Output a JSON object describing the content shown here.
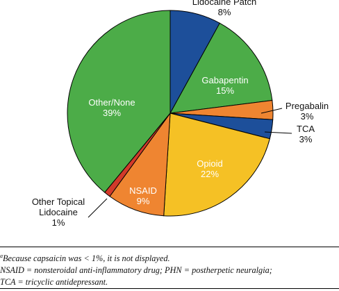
{
  "chart_data": {
    "type": "pie",
    "slices": [
      {
        "label": [
          "Lidocaine Patch"
        ],
        "value": 8,
        "pct": "8%",
        "color": "#1d4f9a"
      },
      {
        "label": [
          "Gabapentin"
        ],
        "value": 15,
        "pct": "15%",
        "color": "#4cac48"
      },
      {
        "label": [
          "Pregabalin"
        ],
        "value": 3,
        "pct": "3%",
        "color": "#ef8531"
      },
      {
        "label": [
          "TCA"
        ],
        "value": 3,
        "pct": "3%",
        "color": "#1d4f9a"
      },
      {
        "label": [
          "Opioid"
        ],
        "value": 22,
        "pct": "22%",
        "color": "#f5c125"
      },
      {
        "label": [
          "NSAID"
        ],
        "value": 9,
        "pct": "9%",
        "color": "#ef8531"
      },
      {
        "label": [
          "Other Topical",
          "Lidocaine"
        ],
        "value": 1,
        "pct": "1%",
        "color": "#d23a2a"
      },
      {
        "label": [
          "Other/None"
        ],
        "value": 39,
        "pct": "39%",
        "color": "#4cac48"
      }
    ]
  },
  "footnote": {
    "marker": "a",
    "line1": "Because capsaicin was < 1%, it is not displayed.",
    "line2": "NSAID = nonsteroidal anti-inflammatory drug; PHN = postherpetic neuralgia;",
    "line3": "TCA = tricyclic antidepressant."
  }
}
